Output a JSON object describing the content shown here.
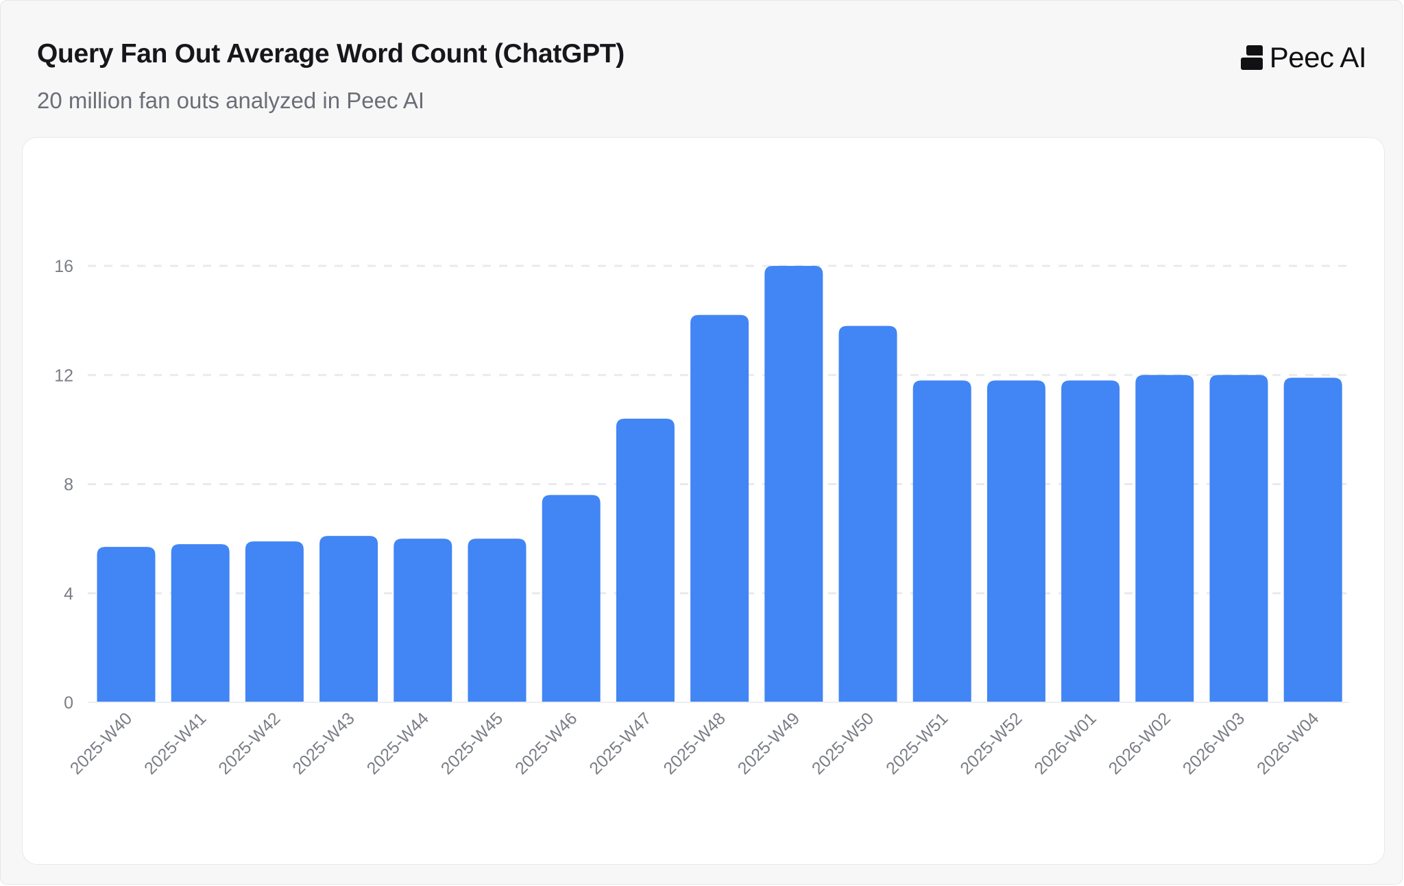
{
  "header": {
    "title": "Query Fan Out Average Word Count (ChatGPT)",
    "subtitle": "20 million fan outs analyzed in Peec AI",
    "logo_text": "Peec AI"
  },
  "chart_data": {
    "type": "bar",
    "title": "Query Fan Out Average Word Count (ChatGPT)",
    "subtitle": "20 million fan outs analyzed in Peec AI",
    "xlabel": "",
    "ylabel": "",
    "categories": [
      "2025-W40",
      "2025-W41",
      "2025-W42",
      "2025-W43",
      "2025-W44",
      "2025-W45",
      "2025-W46",
      "2025-W47",
      "2025-W48",
      "2025-W49",
      "2025-W50",
      "2025-W51",
      "2025-W52",
      "2026-W01",
      "2026-W02",
      "2026-W03",
      "2026-W04"
    ],
    "values": [
      5.7,
      5.8,
      5.9,
      6.1,
      6.0,
      6.0,
      7.6,
      10.4,
      14.2,
      16.0,
      13.8,
      11.8,
      11.8,
      11.8,
      12.0,
      12.0,
      11.9
    ],
    "ylim": [
      0,
      16
    ],
    "yticks": [
      0,
      4,
      8,
      12,
      16
    ],
    "grid": true,
    "legend": "none",
    "bar_color": "#4285f4"
  }
}
